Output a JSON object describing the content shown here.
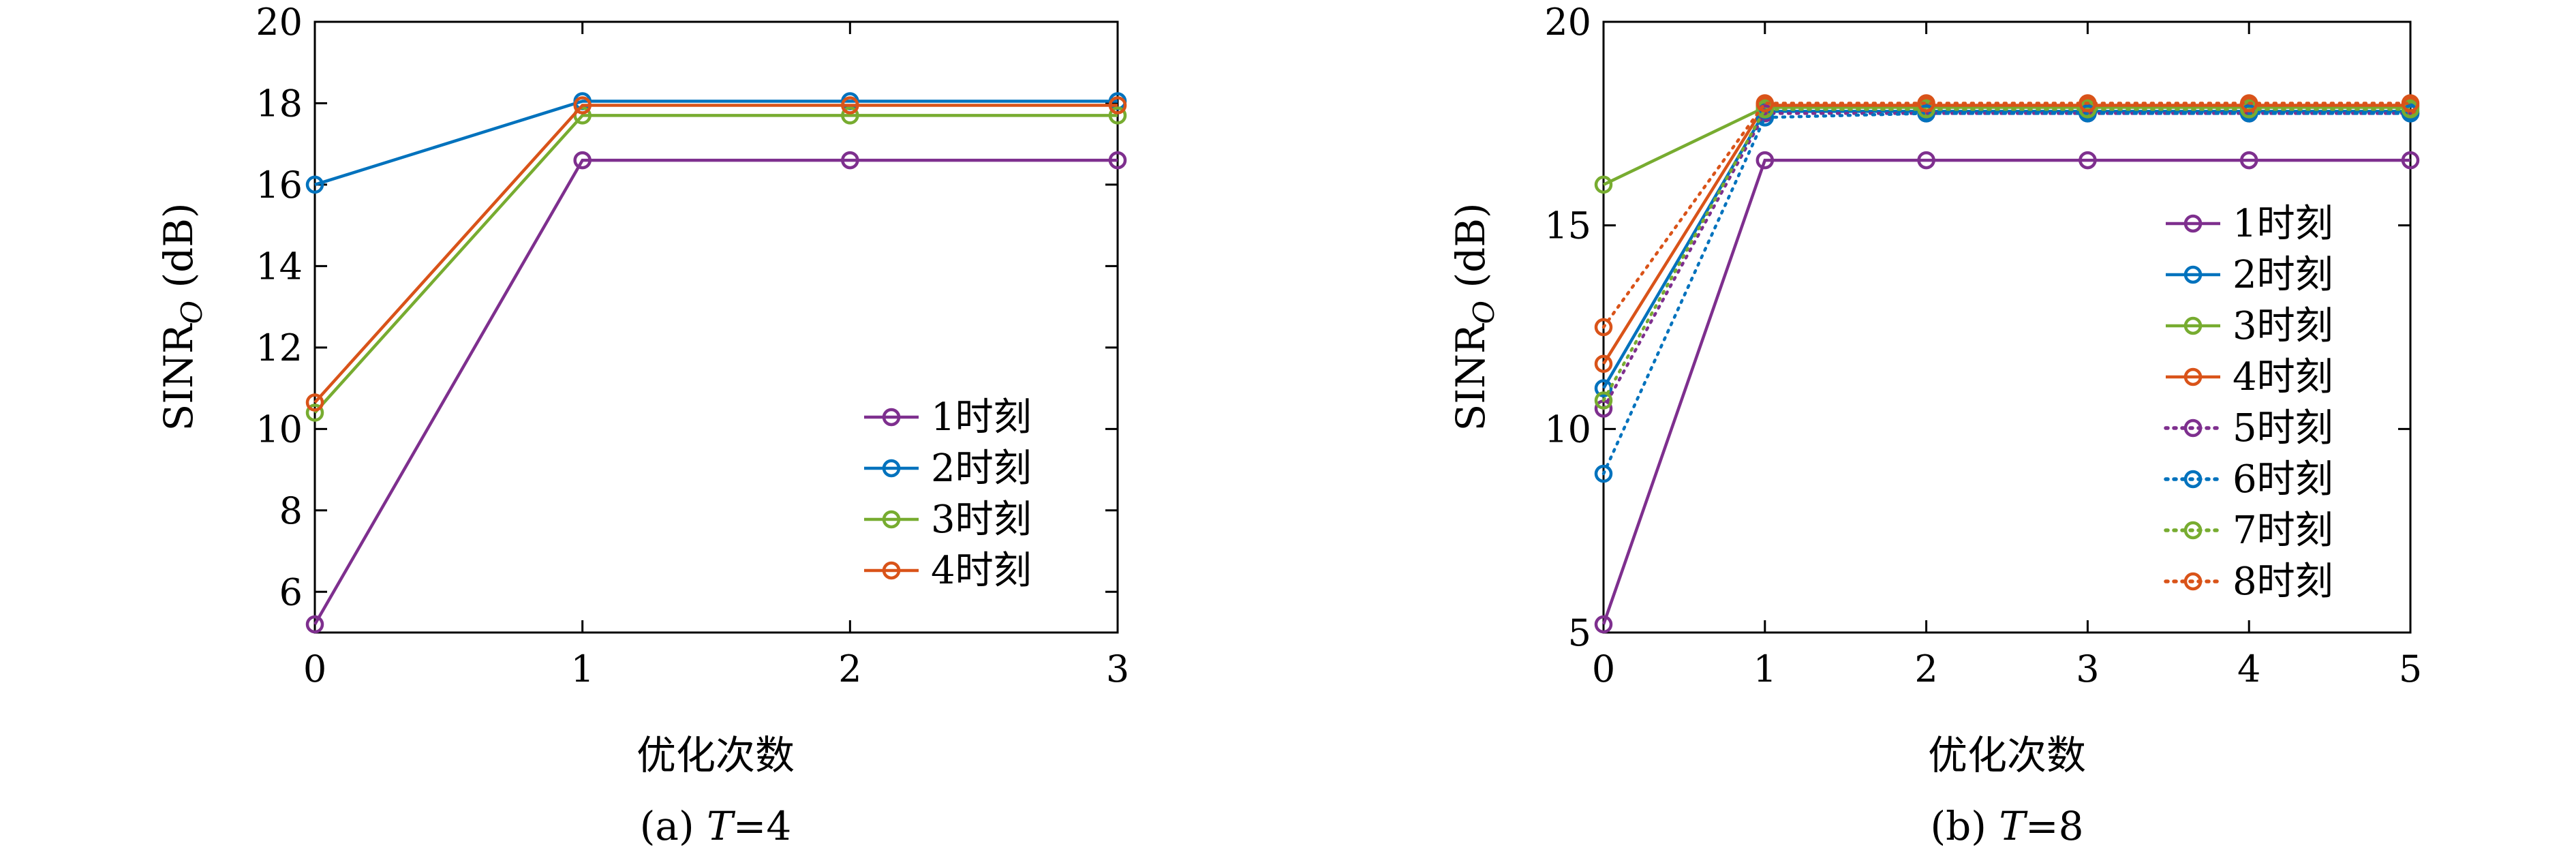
{
  "chart_data": [
    {
      "type": "line",
      "caption_prefix": "(a) ",
      "caption_var": "T",
      "caption_suffix": "=4",
      "xlabel": "优化次数",
      "ylabel_main": "SINR",
      "ylabel_sub": "O",
      "ylabel_unit": " (dB)",
      "xlim": [
        0,
        3
      ],
      "ylim": [
        5,
        20
      ],
      "xticks": [
        0,
        1,
        2,
        3
      ],
      "yticks": [
        6,
        8,
        10,
        12,
        14,
        16,
        18,
        20
      ],
      "legend_position": "lower-right",
      "x": [
        0,
        1,
        2,
        3
      ],
      "series": [
        {
          "name": "1时刻",
          "color": "#7E2F8E",
          "style": "solid",
          "values": [
            5.2,
            16.6,
            16.6,
            16.6
          ]
        },
        {
          "name": "2时刻",
          "color": "#0072BD",
          "style": "solid",
          "values": [
            16.0,
            18.05,
            18.05,
            18.05
          ]
        },
        {
          "name": "3时刻",
          "color": "#77AC30",
          "style": "solid",
          "values": [
            10.4,
            17.7,
            17.7,
            17.7
          ]
        },
        {
          "name": "4时刻",
          "color": "#D95319",
          "style": "solid",
          "values": [
            10.65,
            17.95,
            17.95,
            17.95
          ]
        }
      ]
    },
    {
      "type": "line",
      "caption_prefix": "(b) ",
      "caption_var": "T",
      "caption_suffix": "=8",
      "xlabel": "优化次数",
      "ylabel_main": "SINR",
      "ylabel_sub": "O",
      "ylabel_unit": " (dB)",
      "xlim": [
        0,
        5
      ],
      "ylim": [
        5,
        20
      ],
      "xticks": [
        0,
        1,
        2,
        3,
        4,
        5
      ],
      "yticks": [
        5,
        10,
        15,
        20
      ],
      "legend_position": "right",
      "x": [
        0,
        1,
        2,
        3,
        4,
        5
      ],
      "series": [
        {
          "name": "1时刻",
          "color": "#7E2F8E",
          "style": "solid",
          "values": [
            5.2,
            16.6,
            16.6,
            16.6,
            16.6,
            16.6
          ]
        },
        {
          "name": "2时刻",
          "color": "#0072BD",
          "style": "solid",
          "values": [
            11.0,
            17.8,
            17.8,
            17.8,
            17.8,
            17.8
          ]
        },
        {
          "name": "3时刻",
          "color": "#77AC30",
          "style": "solid",
          "values": [
            16.0,
            17.9,
            17.9,
            17.9,
            17.9,
            17.9
          ]
        },
        {
          "name": "4时刻",
          "color": "#D95319",
          "style": "solid",
          "values": [
            11.6,
            17.95,
            17.95,
            17.95,
            17.95,
            17.95
          ]
        },
        {
          "name": "5时刻",
          "color": "#7E2F8E",
          "style": "dotted",
          "values": [
            10.5,
            17.75,
            17.75,
            17.75,
            17.75,
            17.75
          ]
        },
        {
          "name": "6时刻",
          "color": "#0072BD",
          "style": "dotted",
          "values": [
            8.9,
            17.65,
            17.75,
            17.75,
            17.75,
            17.75
          ]
        },
        {
          "name": "7时刻",
          "color": "#77AC30",
          "style": "dotted",
          "values": [
            10.7,
            17.85,
            17.85,
            17.85,
            17.85,
            17.85
          ]
        },
        {
          "name": "8时刻",
          "color": "#D95319",
          "style": "dotted",
          "values": [
            12.5,
            18.0,
            18.0,
            18.0,
            18.0,
            18.0
          ]
        }
      ]
    }
  ]
}
